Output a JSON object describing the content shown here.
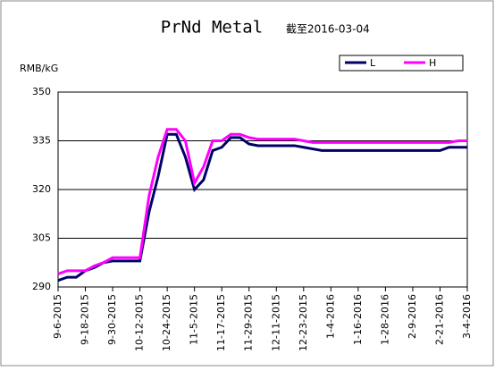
{
  "chart_data": {
    "type": "line",
    "title": "PrNd Metal",
    "subtitle": "截至2016-03-04",
    "y_label": "RMB/kG",
    "x": [
      "9-6-2015",
      "9-10-2015",
      "9-14-2015",
      "9-18-2015",
      "9-22-2015",
      "9-26-2015",
      "9-30-2015",
      "10-4-2015",
      "10-8-2015",
      "10-12-2015",
      "10-16-2015",
      "10-20-2015",
      "10-24-2015",
      "10-28-2015",
      "11-1-2015",
      "11-5-2015",
      "11-9-2015",
      "11-13-2015",
      "11-17-2015",
      "11-21-2015",
      "11-25-2015",
      "11-29-2015",
      "12-3-2015",
      "12-7-2015",
      "12-11-2015",
      "12-15-2015",
      "12-19-2015",
      "12-23-2015",
      "12-27-2015",
      "12-31-2015",
      "1-4-2016",
      "1-8-2016",
      "1-12-2016",
      "1-16-2016",
      "1-20-2016",
      "1-24-2016",
      "1-28-2016",
      "2-1-2016",
      "2-5-2016",
      "2-9-2016",
      "2-13-2016",
      "2-17-2016",
      "2-21-2016",
      "2-25-2016",
      "2-29-2016",
      "3-4-2016"
    ],
    "xticks": [
      "9-6-2015",
      "9-18-2015",
      "9-30-2015",
      "10-12-2015",
      "10-24-2015",
      "11-5-2015",
      "11-17-2015",
      "11-29-2015",
      "12-11-2015",
      "12-23-2015",
      "1-4-2016",
      "1-16-2016",
      "1-28-2016",
      "2-9-2016",
      "2-21-2016",
      "3-4-2016"
    ],
    "series": [
      {
        "name": "L",
        "color": "#000066",
        "values": [
          292,
          293,
          293,
          295,
          296,
          297.5,
          298,
          298,
          298,
          298,
          313,
          324,
          337,
          337,
          330,
          320,
          323,
          332,
          333,
          336,
          336,
          334,
          333.5,
          333.5,
          333.5,
          333.5,
          333.5,
          333,
          332.5,
          332,
          332,
          332,
          332,
          332,
          332,
          332,
          332,
          332,
          332,
          332,
          332,
          332,
          332,
          333,
          333,
          333
        ]
      },
      {
        "name": "H",
        "color": "#ff00ff",
        "values": [
          294,
          295,
          295,
          295,
          296.5,
          297.5,
          299,
          299,
          299,
          299,
          318,
          330,
          338.5,
          338.5,
          335,
          322,
          327,
          335,
          335,
          337,
          337,
          336,
          335.5,
          335.5,
          335.5,
          335.5,
          335.5,
          335,
          334.5,
          334.5,
          334.5,
          334.5,
          334.5,
          334.5,
          334.5,
          334.5,
          334.5,
          334.5,
          334.5,
          334.5,
          334.5,
          334.5,
          334.5,
          334.5,
          335,
          335
        ]
      }
    ],
    "ylim": [
      290,
      350
    ],
    "yticks": [
      290,
      305,
      320,
      335,
      350
    ],
    "grid": true
  }
}
